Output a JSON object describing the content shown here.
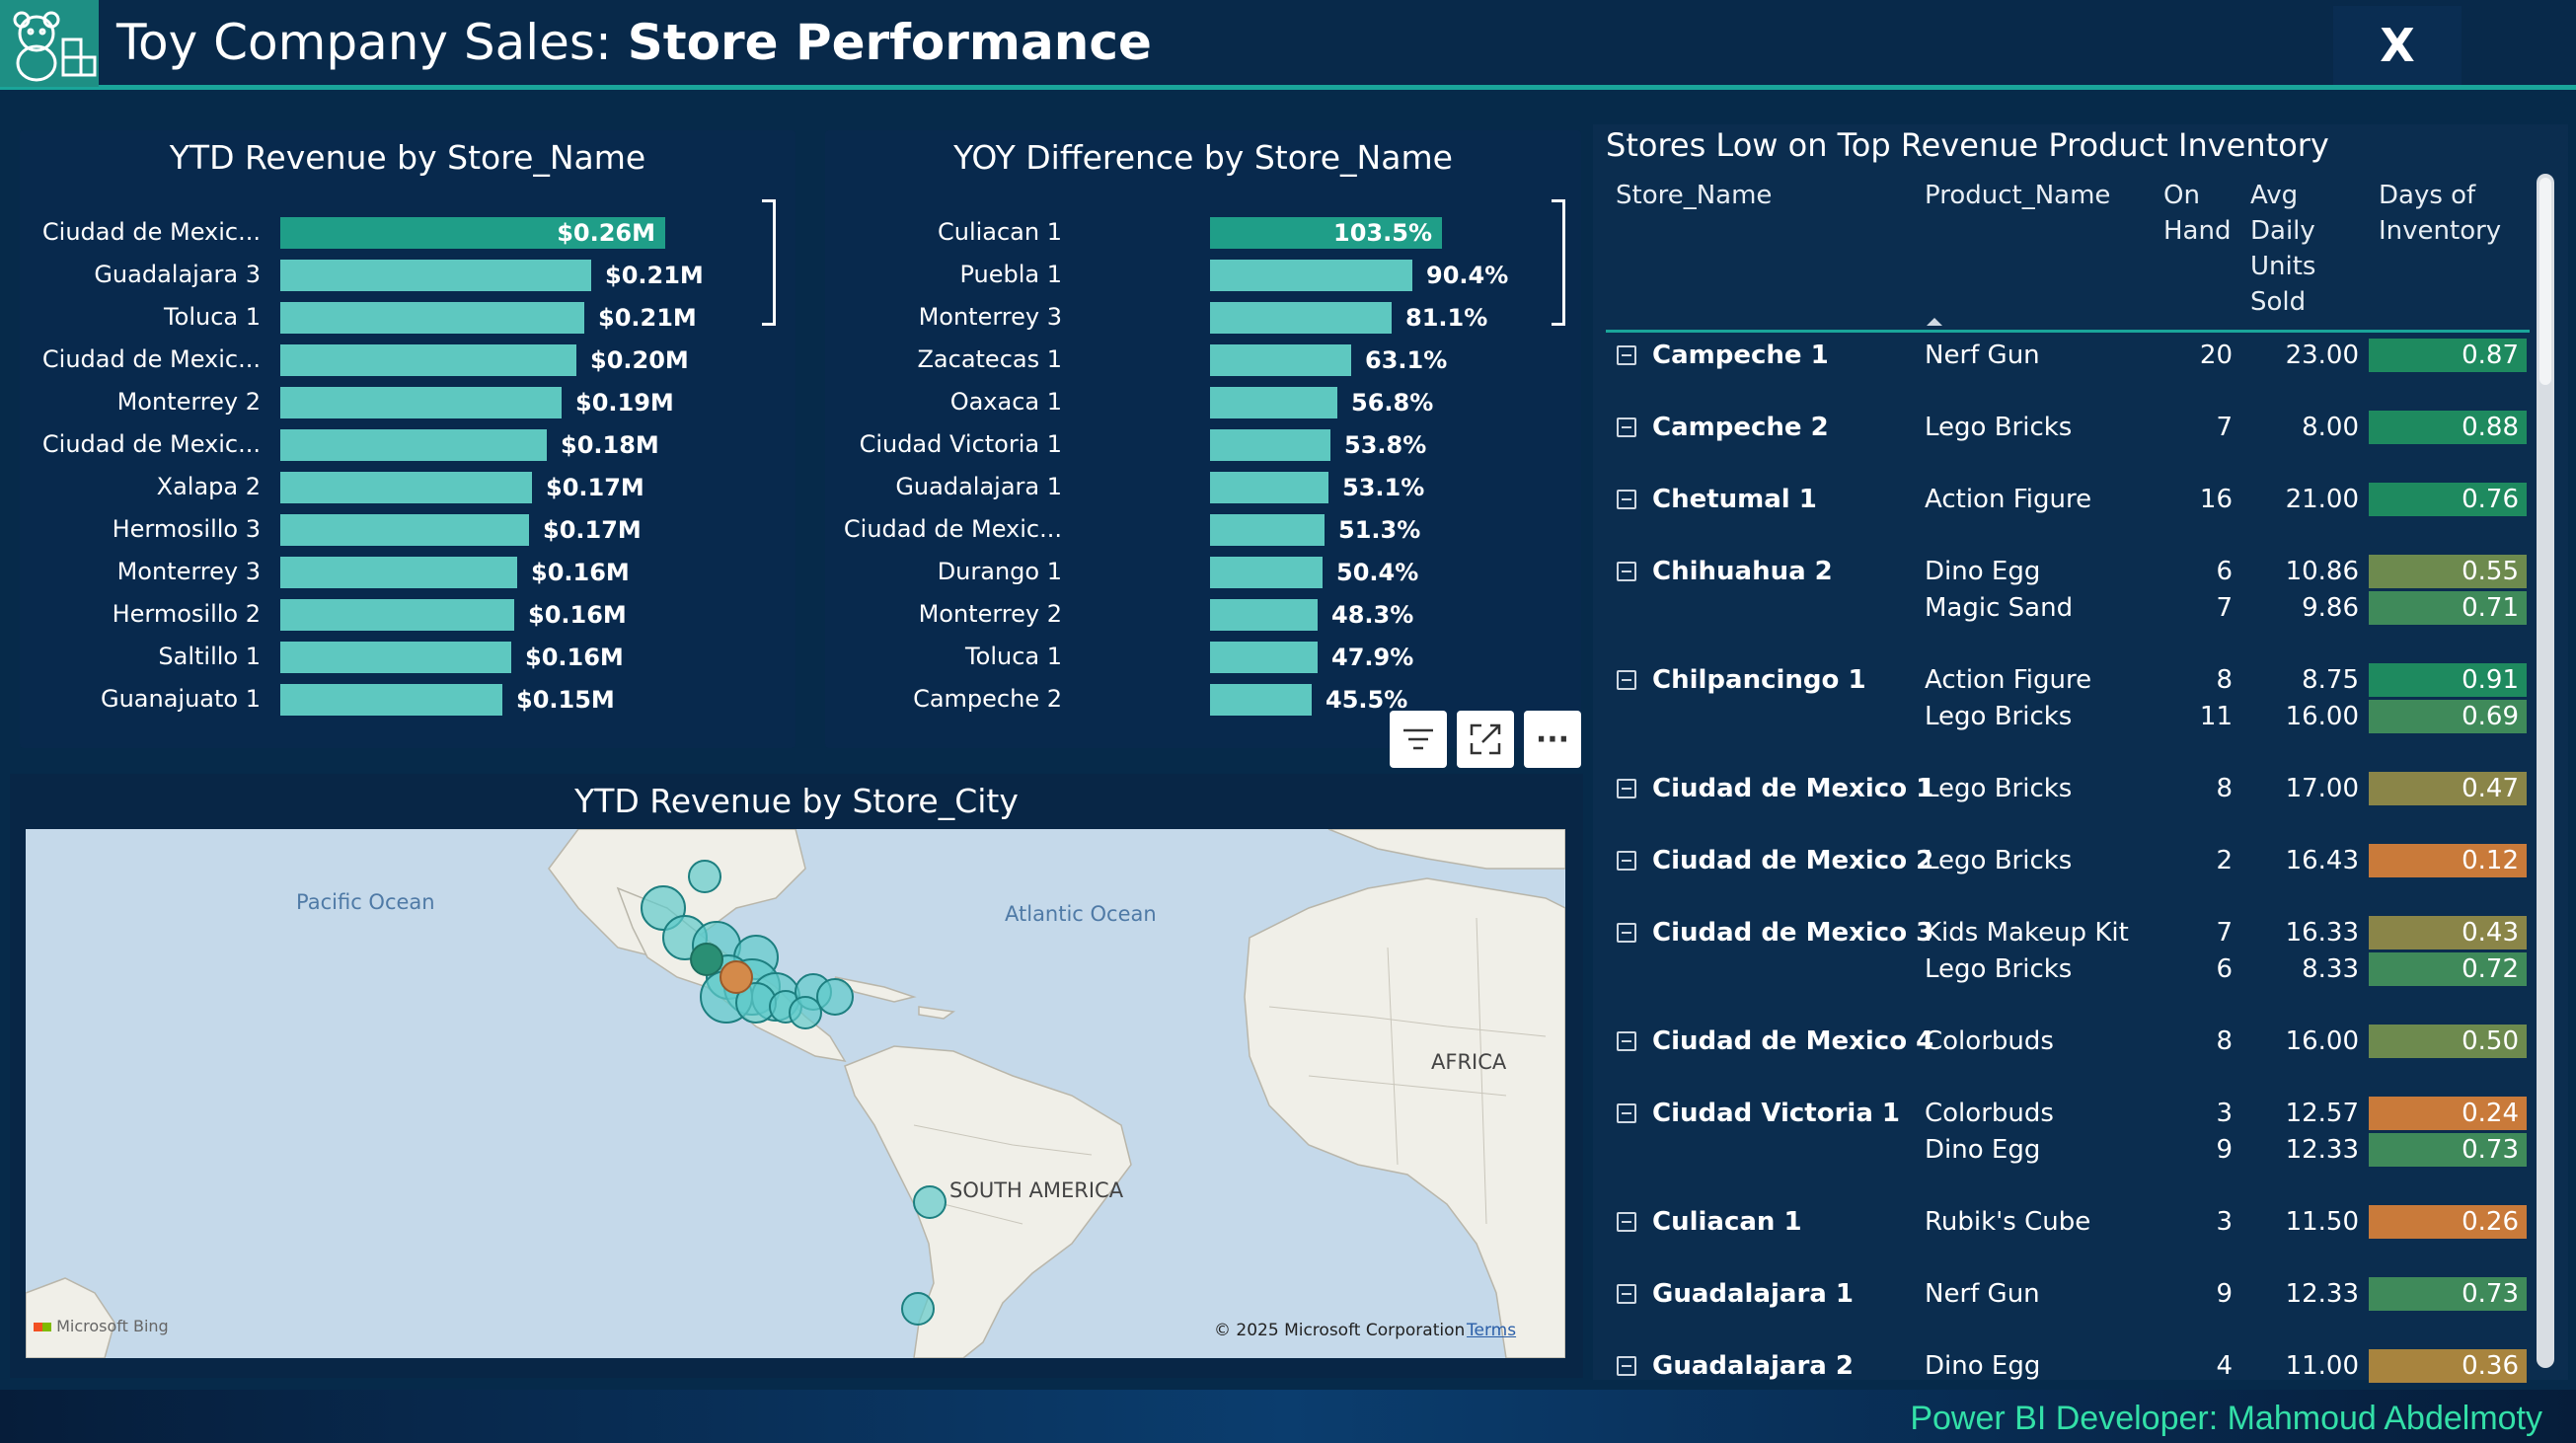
{
  "header": {
    "title_prefix": "Toy Company Sales: ",
    "title_bold": "Store Performance",
    "close_label": "X",
    "logo_icon": "teddy-bear-blocks-icon"
  },
  "colors": {
    "accent": "#1aa59a",
    "bar_primary": "#1f9e88",
    "bar_light": "#5ec8c0",
    "good": "#1e8a5f",
    "mid": "#7e8a4c",
    "low": "#c97a3a",
    "footer_text": "#33e0a8"
  },
  "ytd_store": {
    "title": "YTD Revenue by Store_Name",
    "max": 0.3,
    "rows": [
      {
        "label": "Ciudad de Mexic...",
        "value": 0.26,
        "display": "$0.26M"
      },
      {
        "label": "Guadalajara 3",
        "value": 0.21,
        "display": "$0.21M"
      },
      {
        "label": "Toluca 1",
        "value": 0.205,
        "display": "$0.21M"
      },
      {
        "label": "Ciudad de Mexic...",
        "value": 0.2,
        "display": "$0.20M"
      },
      {
        "label": "Monterrey 2",
        "value": 0.19,
        "display": "$0.19M"
      },
      {
        "label": "Ciudad de Mexic...",
        "value": 0.18,
        "display": "$0.18M"
      },
      {
        "label": "Xalapa 2",
        "value": 0.17,
        "display": "$0.17M"
      },
      {
        "label": "Hermosillo 3",
        "value": 0.168,
        "display": "$0.17M"
      },
      {
        "label": "Monterrey 3",
        "value": 0.16,
        "display": "$0.16M"
      },
      {
        "label": "Hermosillo 2",
        "value": 0.158,
        "display": "$0.16M"
      },
      {
        "label": "Saltillo 1",
        "value": 0.156,
        "display": "$0.16M"
      },
      {
        "label": "Guanajuato 1",
        "value": 0.15,
        "display": "$0.15M"
      }
    ]
  },
  "yoy_store": {
    "title": "YOY Difference by Store_Name",
    "max": 120,
    "rows": [
      {
        "label": "Culiacan 1",
        "value": 103.5,
        "display": "103.5%"
      },
      {
        "label": "Puebla 1",
        "value": 90.4,
        "display": "90.4%"
      },
      {
        "label": "Monterrey 3",
        "value": 81.1,
        "display": "81.1%"
      },
      {
        "label": "Zacatecas 1",
        "value": 63.1,
        "display": "63.1%"
      },
      {
        "label": "Oaxaca 1",
        "value": 56.8,
        "display": "56.8%"
      },
      {
        "label": "Ciudad Victoria 1",
        "value": 53.8,
        "display": "53.8%"
      },
      {
        "label": "Guadalajara 1",
        "value": 53.1,
        "display": "53.1%"
      },
      {
        "label": "Ciudad de Mexic...",
        "value": 51.3,
        "display": "51.3%"
      },
      {
        "label": "Durango 1",
        "value": 50.4,
        "display": "50.4%"
      },
      {
        "label": "Monterrey 2",
        "value": 48.3,
        "display": "48.3%"
      },
      {
        "label": "Toluca 1",
        "value": 47.9,
        "display": "47.9%"
      },
      {
        "label": "Campeche 2",
        "value": 45.5,
        "display": "45.5%"
      }
    ]
  },
  "map": {
    "title": "YTD Revenue by Store_City",
    "labels": {
      "pacific": "Pacific Ocean",
      "atlantic": "Atlantic Ocean",
      "africa": "AFRICA",
      "south_america": "SOUTH AMERICA"
    },
    "attribution": "© 2025 Microsoft Corporation",
    "terms": "Terms",
    "bing": "Microsoft Bing"
  },
  "toolbar": {
    "filter_icon": "filter-icon",
    "focus_icon": "focus-mode-icon",
    "more_icon": "more-options-icon",
    "more_label": "···"
  },
  "table": {
    "title": "Stores Low on Top Revenue Product Inventory",
    "headers": {
      "store": "Store_Name",
      "product": "Product_Name",
      "on_hand": "On Hand",
      "avg": "Avg Daily Units Sold",
      "days": "Days of Inventory"
    },
    "groups": [
      {
        "store": "Campeche 1",
        "items": [
          {
            "product": "Nerf Gun",
            "on_hand": "20",
            "avg": "23.00",
            "days": "0.87",
            "days_value": 0.87
          }
        ]
      },
      {
        "store": "Campeche 2",
        "items": [
          {
            "product": "Lego Bricks",
            "on_hand": "7",
            "avg": "8.00",
            "days": "0.88",
            "days_value": 0.88
          }
        ]
      },
      {
        "store": "Chetumal 1",
        "items": [
          {
            "product": "Action Figure",
            "on_hand": "16",
            "avg": "21.00",
            "days": "0.76",
            "days_value": 0.76
          }
        ]
      },
      {
        "store": "Chihuahua 2",
        "items": [
          {
            "product": "Dino Egg",
            "on_hand": "6",
            "avg": "10.86",
            "days": "0.55",
            "days_value": 0.55
          },
          {
            "product": "Magic Sand",
            "on_hand": "7",
            "avg": "9.86",
            "days": "0.71",
            "days_value": 0.71
          }
        ]
      },
      {
        "store": "Chilpancingo 1",
        "items": [
          {
            "product": "Action Figure",
            "on_hand": "8",
            "avg": "8.75",
            "days": "0.91",
            "days_value": 0.91
          },
          {
            "product": "Lego Bricks",
            "on_hand": "11",
            "avg": "16.00",
            "days": "0.69",
            "days_value": 0.69
          }
        ]
      },
      {
        "store": "Ciudad de Mexico 1",
        "items": [
          {
            "product": "Lego Bricks",
            "on_hand": "8",
            "avg": "17.00",
            "days": "0.47",
            "days_value": 0.47
          }
        ]
      },
      {
        "store": "Ciudad de Mexico 2",
        "items": [
          {
            "product": "Lego Bricks",
            "on_hand": "2",
            "avg": "16.43",
            "days": "0.12",
            "days_value": 0.12
          }
        ]
      },
      {
        "store": "Ciudad de Mexico 3",
        "items": [
          {
            "product": "Kids Makeup Kit",
            "on_hand": "7",
            "avg": "16.33",
            "days": "0.43",
            "days_value": 0.43
          },
          {
            "product": "Lego Bricks",
            "on_hand": "6",
            "avg": "8.33",
            "days": "0.72",
            "days_value": 0.72
          }
        ]
      },
      {
        "store": "Ciudad de Mexico 4",
        "items": [
          {
            "product": "Colorbuds",
            "on_hand": "8",
            "avg": "16.00",
            "days": "0.50",
            "days_value": 0.5
          }
        ]
      },
      {
        "store": "Ciudad Victoria 1",
        "items": [
          {
            "product": "Colorbuds",
            "on_hand": "3",
            "avg": "12.57",
            "days": "0.24",
            "days_value": 0.24
          },
          {
            "product": "Dino Egg",
            "on_hand": "9",
            "avg": "12.33",
            "days": "0.73",
            "days_value": 0.73
          }
        ]
      },
      {
        "store": "Culiacan 1",
        "items": [
          {
            "product": "Rubik's Cube",
            "on_hand": "3",
            "avg": "11.50",
            "days": "0.26",
            "days_value": 0.26
          }
        ]
      },
      {
        "store": "Guadalajara 1",
        "items": [
          {
            "product": "Nerf Gun",
            "on_hand": "9",
            "avg": "12.33",
            "days": "0.73",
            "days_value": 0.73
          }
        ]
      },
      {
        "store": "Guadalajara 2",
        "items": [
          {
            "product": "Dino Egg",
            "on_hand": "4",
            "avg": "11.00",
            "days": "0.36",
            "days_value": 0.36
          }
        ]
      }
    ]
  },
  "footer": {
    "credit": "Power BI Developer: Mahmoud Abdelmoty"
  }
}
